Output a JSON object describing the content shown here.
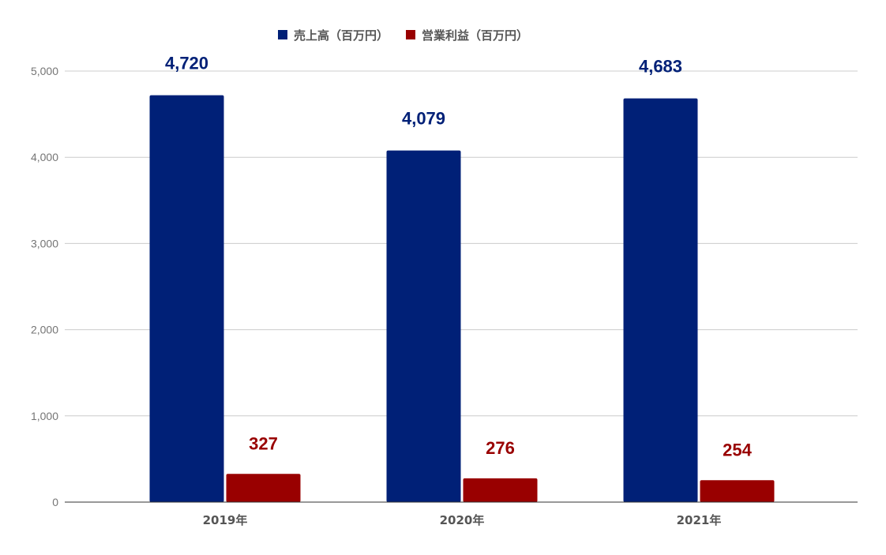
{
  "chart_data": {
    "type": "bar",
    "categories": [
      "2019年",
      "2020年",
      "2021年"
    ],
    "series": [
      {
        "name": "売上高（百万円）",
        "values": [
          4720,
          4079,
          4683
        ],
        "labels": [
          "4,720",
          "4,079",
          "4,683"
        ],
        "color": "#002077"
      },
      {
        "name": "営業利益（百万円）",
        "values": [
          327,
          276,
          254
        ],
        "labels": [
          "327",
          "276",
          "254"
        ],
        "color": "#990000"
      }
    ],
    "ylim": [
      0,
      5000
    ],
    "yticks": [
      0,
      1000,
      2000,
      3000,
      4000,
      5000
    ],
    "ytick_labels": [
      "0",
      "1,000",
      "2,000",
      "3,000",
      "4,000",
      "5,000"
    ],
    "grid": true,
    "legend_position": "top"
  }
}
